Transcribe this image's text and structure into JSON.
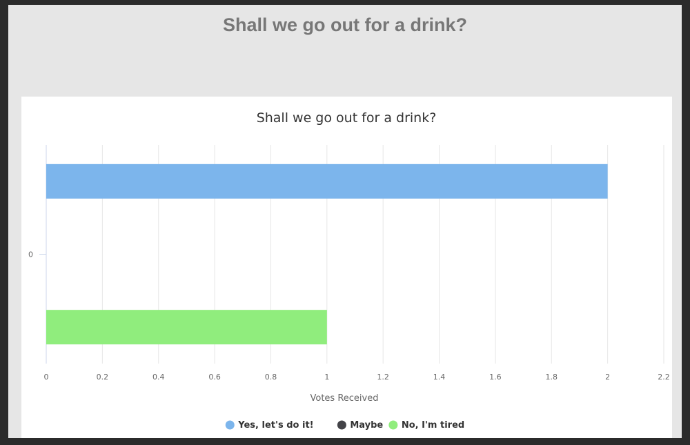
{
  "page": {
    "title": "Shall we go out for a drink?"
  },
  "chart_data": {
    "type": "bar",
    "orientation": "horizontal",
    "title": "Shall we go out for a drink?",
    "xlabel": "Votes Received",
    "ylabel": "",
    "categories": [
      "0"
    ],
    "xlim": [
      0,
      2.2
    ],
    "x_ticks": [
      "0",
      "0.2",
      "0.4",
      "0.6",
      "0.8",
      "1",
      "1.2",
      "1.4",
      "1.6",
      "1.8",
      "2",
      "2.2"
    ],
    "grid": true,
    "legend_position": "bottom",
    "series": [
      {
        "name": "Yes, let's do it!",
        "values": [
          2
        ],
        "color": "#7cb5ec"
      },
      {
        "name": "Maybe",
        "values": [
          0
        ],
        "color": "#434348"
      },
      {
        "name": "No, I'm tired",
        "values": [
          1
        ],
        "color": "#90ed7d"
      }
    ]
  }
}
